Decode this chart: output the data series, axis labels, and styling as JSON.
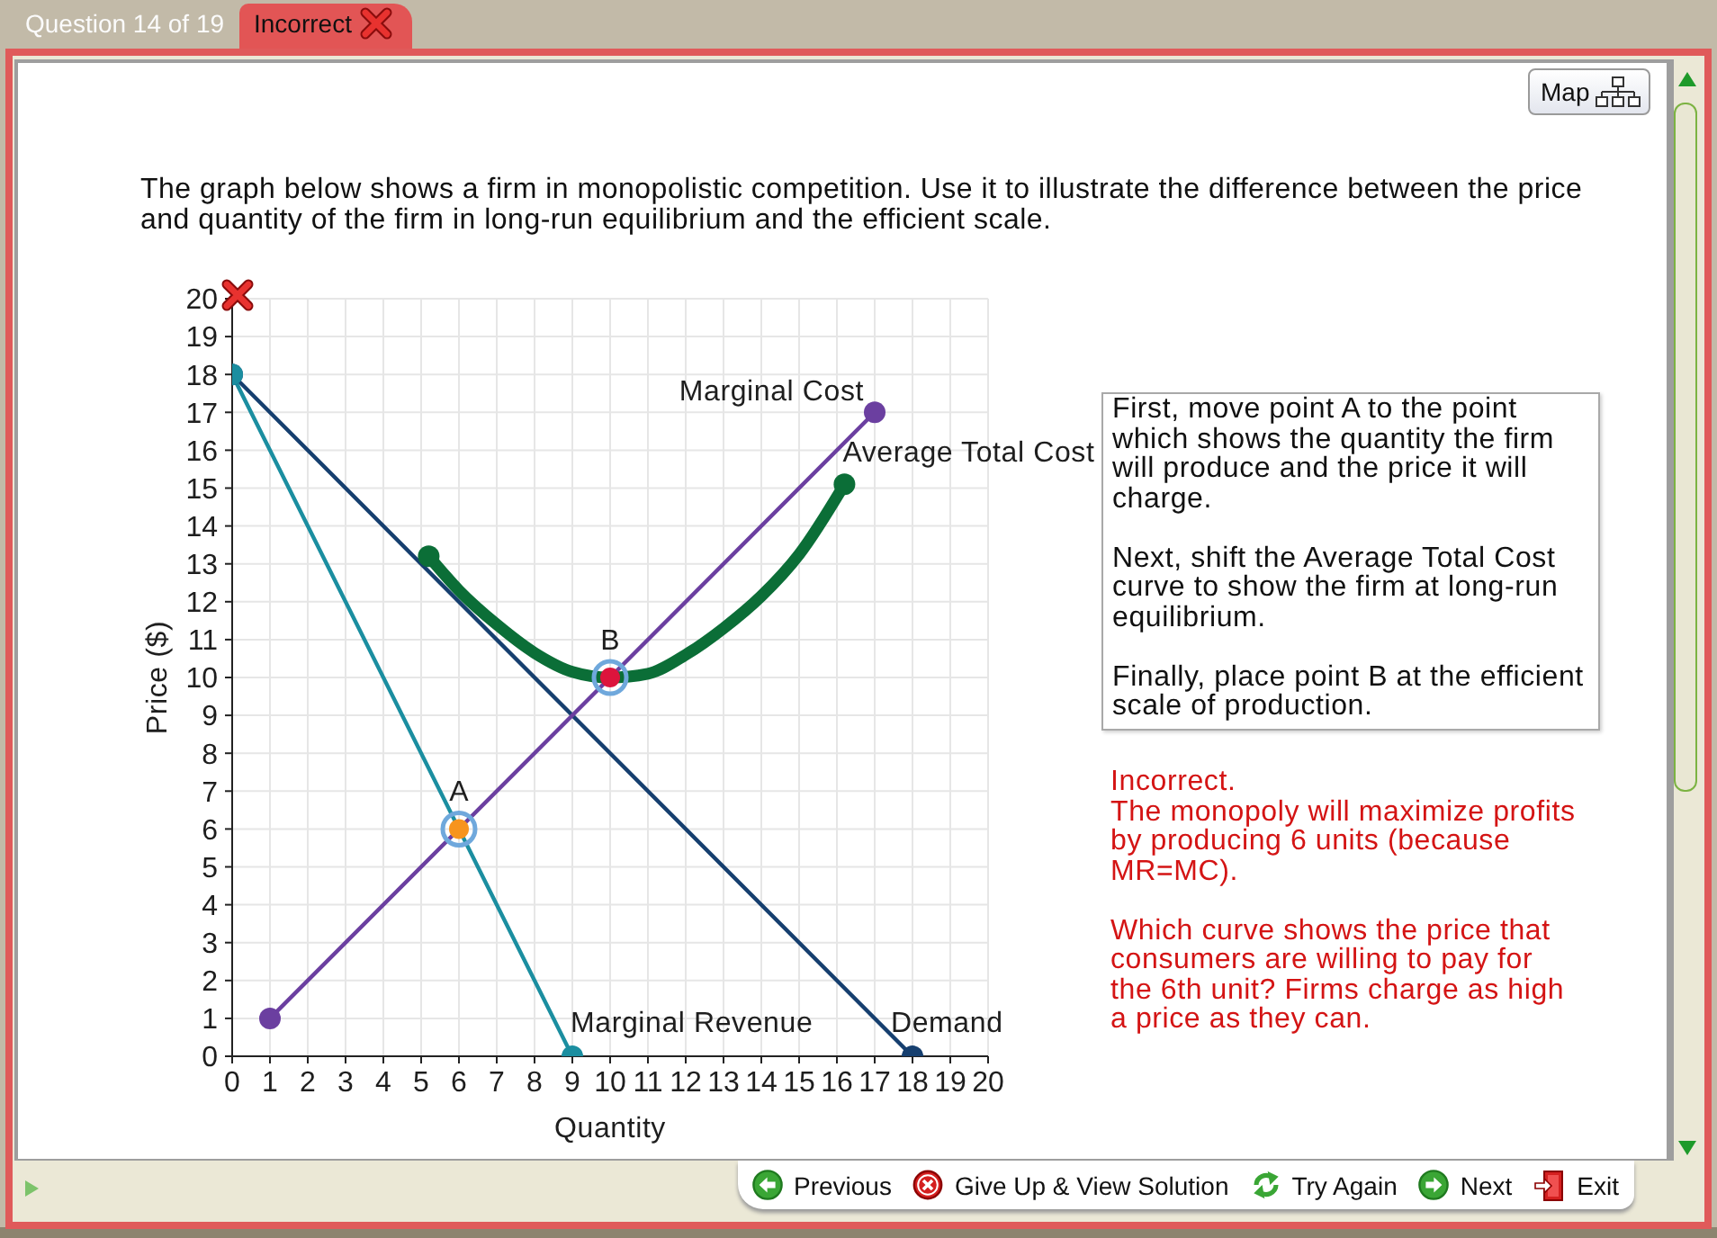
{
  "chart_data": {
    "type": "line",
    "title": "The graph below shows a firm in monopolistic competition. Use it to illustrate the difference between the price and quantity of the firm in long-run equilibrium and the efficient scale.",
    "xlabel": "Quantity",
    "ylabel": "Price ($)",
    "series": [
      {
        "name": "Demand",
        "color": "#163f6f",
        "x": [
          0,
          18
        ],
        "values": [
          18,
          0
        ]
      },
      {
        "name": "Marginal Revenue",
        "color": "#1b8ea0",
        "x": [
          0,
          9
        ],
        "values": [
          18,
          0
        ]
      },
      {
        "name": "Marginal Cost",
        "color": "#6b3fa0",
        "x": [
          1,
          17
        ],
        "values": [
          1,
          17
        ]
      },
      {
        "name": "Average Total Cost",
        "color": "#0b6e37",
        "marker": "none",
        "x": [
          5.2,
          6,
          7,
          8,
          9,
          10,
          11,
          12,
          13,
          14,
          15,
          16.2
        ],
        "values": [
          13.2,
          12.3,
          11.4,
          10.65,
          10.15,
          10,
          10.1,
          10.6,
          11.3,
          12.15,
          13.25,
          15.1
        ]
      },
      {
        "type": "scatter",
        "color": "#0b6e37",
        "x": [
          5.2,
          16.2
        ],
        "values": [
          13.2,
          15.1
        ]
      },
      {
        "name": "A",
        "type": "scatter",
        "color": "#f7941d",
        "x": [
          6
        ],
        "values": [
          6
        ]
      },
      {
        "name": "B",
        "type": "scatter",
        "color": "#dc143c",
        "x": [
          10
        ],
        "values": [
          10
        ]
      }
    ],
    "xlim": [
      0,
      20
    ],
    "ylim": [
      0,
      20
    ],
    "xticks": [
      0,
      1,
      2,
      3,
      4,
      5,
      6,
      7,
      8,
      9,
      10,
      11,
      12,
      13,
      14,
      15,
      16,
      17,
      18,
      19,
      20
    ],
    "yticks": [
      0,
      1,
      2,
      3,
      4,
      5,
      6,
      7,
      8,
      9,
      10,
      11,
      12,
      13,
      14,
      15,
      16,
      17,
      18,
      19,
      20
    ],
    "grid": true,
    "marker": "circle",
    "line_style": "solid",
    "annotations": [
      "Question 14 of 19",
      "Incorrect",
      "Map",
      "First, move point A to the point which shows the quantity the firm will produce and the price it will charge.\n\nNext, shift the Average Total Cost curve to show the firm at long-run equilibrium.\n\nFinally, place point B at the efficient scale of production.",
      "Incorrect.\nThe monopoly will maximize profits by producing 6 units (because MR=MC).\n\nWhich curve shows the price that consumers are willing to pay for the 6th unit? Firms charge as high a price as they can.",
      "Previous",
      "Give Up & View Solution",
      "Try Again",
      "Next",
      "Exit"
    ]
  }
}
